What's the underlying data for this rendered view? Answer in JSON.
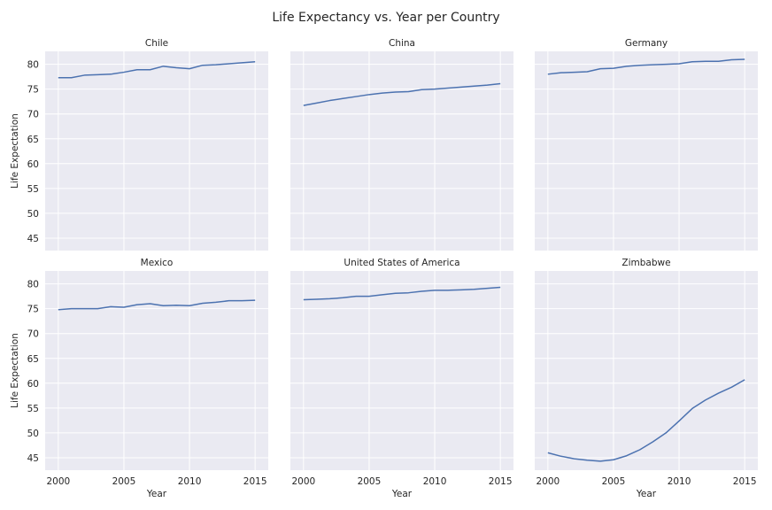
{
  "suptitle": "Life Expectancy vs. Year per Country",
  "colors": {
    "panel_bg": "#EAEAF2",
    "grid": "#FFFFFF",
    "line": "#4C72B0",
    "text": "#262626"
  },
  "chart_data": {
    "type": "line",
    "title": "Life Expectancy vs. Year per Country",
    "xlabel": "Year",
    "ylabel": "Life Expectation",
    "xlim": [
      1999,
      2016
    ],
    "ylim": [
      42.5,
      82.6
    ],
    "x_ticks": [
      2000,
      2005,
      2010,
      2015
    ],
    "y_ticks": [
      45,
      50,
      55,
      60,
      65,
      70,
      75,
      80
    ],
    "grid": true,
    "shared_axes": true,
    "x": [
      2000,
      2001,
      2002,
      2003,
      2004,
      2005,
      2006,
      2007,
      2008,
      2009,
      2010,
      2011,
      2012,
      2013,
      2014,
      2015
    ],
    "panels": [
      {
        "title": "Chile",
        "values": [
          77.3,
          77.3,
          77.8,
          77.9,
          78.0,
          78.4,
          78.9,
          78.9,
          79.6,
          79.3,
          79.1,
          79.8,
          79.9,
          80.1,
          80.3,
          80.5
        ]
      },
      {
        "title": "China",
        "values": [
          71.7,
          72.2,
          72.7,
          73.1,
          73.5,
          73.9,
          74.2,
          74.4,
          74.5,
          74.9,
          75.0,
          75.2,
          75.4,
          75.6,
          75.8,
          76.1
        ]
      },
      {
        "title": "Germany",
        "values": [
          78.0,
          78.3,
          78.4,
          78.5,
          79.1,
          79.2,
          79.6,
          79.8,
          79.9,
          80.0,
          80.1,
          80.5,
          80.6,
          80.6,
          80.9,
          81.0
        ]
      },
      {
        "title": "Mexico",
        "values": [
          74.8,
          75.0,
          75.0,
          75.0,
          75.4,
          75.3,
          75.8,
          76.0,
          75.6,
          75.7,
          75.6,
          76.1,
          76.3,
          76.6,
          76.6,
          76.7
        ]
      },
      {
        "title": "United States of America",
        "values": [
          76.8,
          76.9,
          77.0,
          77.2,
          77.5,
          77.5,
          77.8,
          78.1,
          78.2,
          78.5,
          78.7,
          78.7,
          78.8,
          78.9,
          79.1,
          79.3
        ]
      },
      {
        "title": "Zimbabwe",
        "values": [
          46.0,
          45.3,
          44.8,
          44.5,
          44.3,
          44.6,
          45.4,
          46.6,
          48.2,
          50.0,
          52.4,
          54.9,
          56.6,
          58.0,
          59.2,
          60.7
        ]
      }
    ]
  }
}
